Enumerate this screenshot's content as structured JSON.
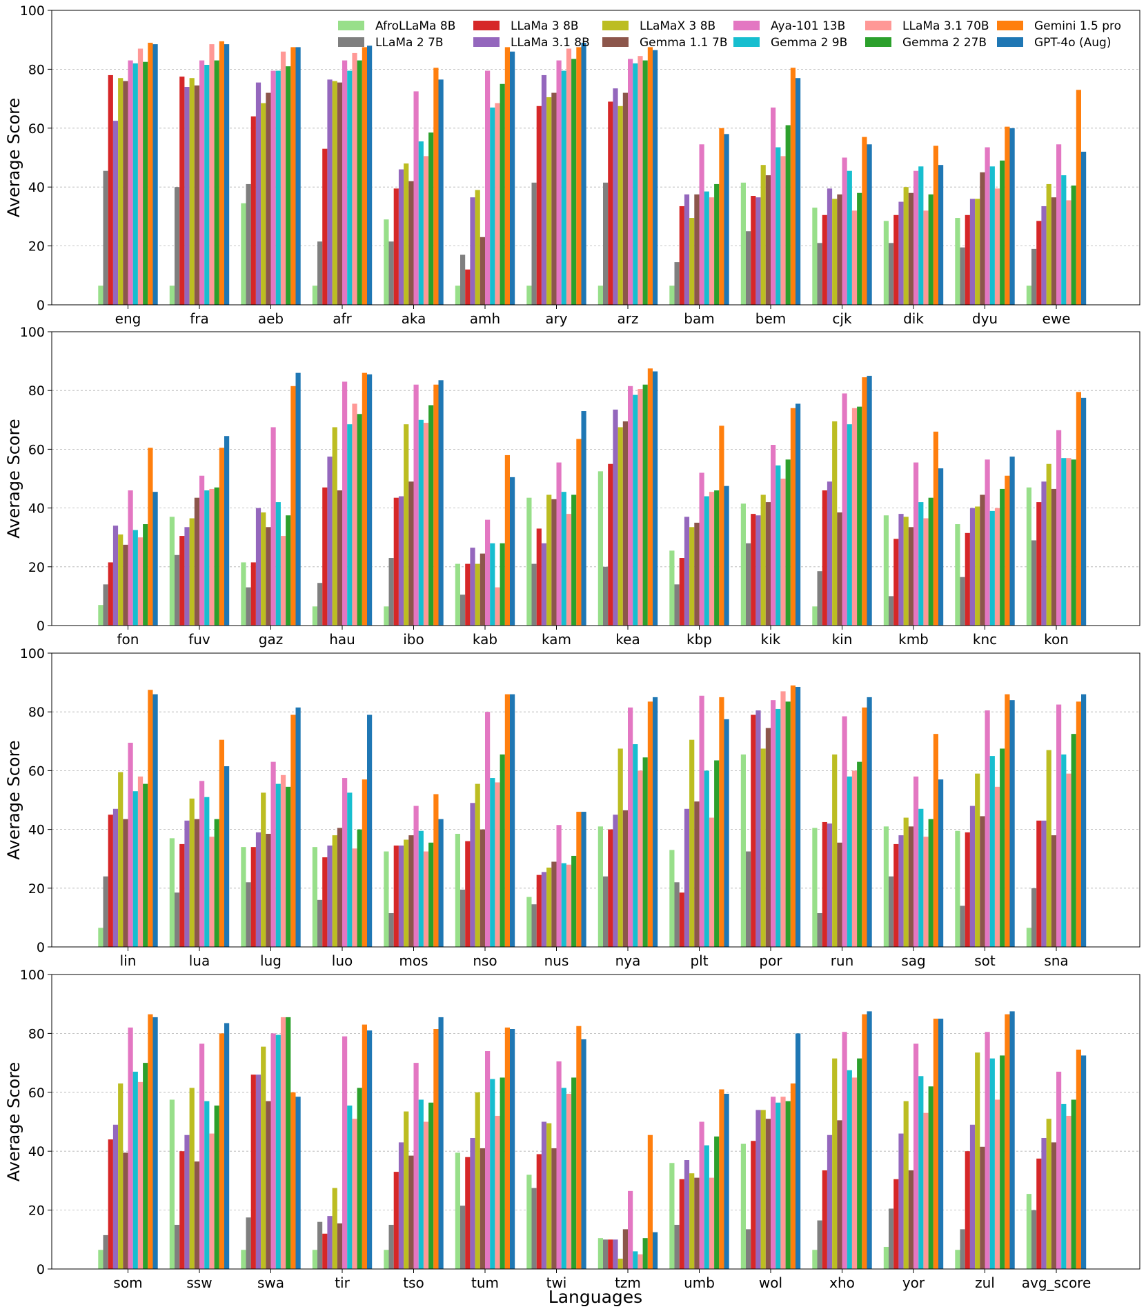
{
  "figure": {
    "xlabel": "Languages"
  },
  "legend": [
    {
      "name": "AfroLLaMa 8B",
      "color": "#98df8a"
    },
    {
      "name": "LLaMa 2 7B",
      "color": "#7f7f7f"
    },
    {
      "name": "LLaMa 3 8B",
      "color": "#d62728"
    },
    {
      "name": "LLaMa 3.1 8B",
      "color": "#9467bd"
    },
    {
      "name": "LLaMaX 3 8B",
      "color": "#bcbd22"
    },
    {
      "name": "Gemma 1.1 7B",
      "color": "#8c564b"
    },
    {
      "name": "Aya-101 13B",
      "color": "#e377c2"
    },
    {
      "name": "Gemma 2 9B",
      "color": "#17becf"
    },
    {
      "name": "LLaMa 3.1 70B",
      "color": "#ff9896"
    },
    {
      "name": "Gemma 2 27B",
      "color": "#2ca02c"
    },
    {
      "name": "Gemini 1.5 pro",
      "color": "#ff7f0e"
    },
    {
      "name": "GPT-4o (Aug)",
      "color": "#1f77b4"
    }
  ],
  "chart_data": [
    {
      "type": "bar",
      "ylabel": "Average Score",
      "ylim": [
        0,
        100
      ],
      "yticks": [
        0,
        20,
        40,
        60,
        80,
        100
      ],
      "grid": "horizontal dashed",
      "legend_position": "top-right",
      "categories": [
        "eng",
        "fra",
        "aeb",
        "afr",
        "aka",
        "amh",
        "ary",
        "arz",
        "bam",
        "bem",
        "cjk",
        "dik",
        "dyu",
        "ewe"
      ],
      "series": [
        {
          "name": "AfroLLaMa 8B",
          "values": [
            6.5,
            6.5,
            34.5,
            6.5,
            29,
            6.5,
            6.5,
            6.5,
            6.5,
            41.5,
            33,
            28.5,
            29.5,
            6.5
          ]
        },
        {
          "name": "LLaMa 2 7B",
          "values": [
            45.5,
            40,
            41,
            21.5,
            21.5,
            17,
            41.5,
            41.5,
            14.5,
            25,
            21,
            21,
            19.5,
            19
          ]
        },
        {
          "name": "LLaMa 3 8B",
          "values": [
            78,
            77.5,
            64,
            53,
            39.5,
            12,
            67.5,
            69,
            33.5,
            37,
            30.5,
            30.5,
            30.5,
            28.5
          ]
        },
        {
          "name": "LLaMa 3.1 8B",
          "values": [
            62.5,
            74,
            75.5,
            76.5,
            46,
            36.5,
            78,
            73.5,
            37.5,
            36.5,
            39.5,
            35,
            36,
            33.5
          ]
        },
        {
          "name": "LLaMaX 3 8B",
          "values": [
            77,
            77,
            68.5,
            76,
            48,
            39,
            70.5,
            67.5,
            29.5,
            47.5,
            36,
            40,
            36,
            41
          ]
        },
        {
          "name": "Gemma 1.1 7B",
          "values": [
            76,
            74.5,
            72,
            75.5,
            42,
            23,
            72,
            72,
            37.5,
            44,
            37.5,
            38,
            45,
            36.5
          ]
        },
        {
          "name": "Aya-101 13B",
          "values": [
            83,
            83,
            79.5,
            83,
            72.5,
            79.5,
            83,
            83.5,
            54.5,
            67,
            50,
            45.5,
            53.5,
            54.5
          ]
        },
        {
          "name": "Gemma 2 9B",
          "values": [
            82,
            81.5,
            79.5,
            79.5,
            55.5,
            67,
            79.5,
            82,
            38.5,
            53.5,
            45.5,
            47,
            47,
            44
          ]
        },
        {
          "name": "LLaMa 3.1 70B",
          "values": [
            87,
            88.5,
            86,
            85.5,
            50.5,
            68.5,
            87,
            84.5,
            36.5,
            50.5,
            32,
            32,
            39.5,
            35.5
          ]
        },
        {
          "name": "Gemma 2 27B",
          "values": [
            82.5,
            83,
            81,
            83,
            58.5,
            75,
            83.5,
            83,
            41,
            61,
            38,
            37.5,
            49,
            40.5
          ]
        },
        {
          "name": "Gemini 1.5 pro",
          "values": [
            89,
            89.5,
            87.5,
            87.5,
            80.5,
            87.5,
            87.5,
            87.5,
            60,
            80.5,
            57,
            54,
            60.5,
            73
          ]
        },
        {
          "name": "GPT-4o (Aug)",
          "values": [
            88.5,
            88.5,
            87.5,
            88,
            76.5,
            86,
            89,
            86.5,
            58,
            77,
            54.5,
            47.5,
            60,
            52
          ]
        }
      ]
    },
    {
      "type": "bar",
      "ylabel": "Average Score",
      "ylim": [
        0,
        100
      ],
      "yticks": [
        0,
        20,
        40,
        60,
        80,
        100
      ],
      "grid": "horizontal dashed",
      "categories": [
        "fon",
        "fuv",
        "gaz",
        "hau",
        "ibo",
        "kab",
        "kam",
        "kea",
        "kbp",
        "kik",
        "kin",
        "kmb",
        "knc",
        "kon"
      ],
      "series": [
        {
          "name": "AfroLLaMa 8B",
          "values": [
            7,
            37,
            21.5,
            6.5,
            6.5,
            21,
            43.5,
            52.5,
            25.5,
            41.5,
            6.5,
            37.5,
            34.5,
            47
          ]
        },
        {
          "name": "LLaMa 2 7B",
          "values": [
            14,
            24,
            13,
            14.5,
            23,
            10.5,
            21,
            20,
            14,
            28,
            18.5,
            10,
            16.5,
            29
          ]
        },
        {
          "name": "LLaMa 3 8B",
          "values": [
            21.5,
            30.5,
            21.5,
            47,
            43.5,
            21,
            33,
            55,
            23,
            38,
            46,
            29.5,
            31.5,
            42
          ]
        },
        {
          "name": "LLaMa 3.1 8B",
          "values": [
            34,
            33.5,
            40,
            57.5,
            44,
            26.5,
            28,
            73.5,
            37,
            37.5,
            49,
            38,
            40,
            49
          ]
        },
        {
          "name": "LLaMaX 3 8B",
          "values": [
            31,
            36.5,
            38.5,
            67.5,
            68.5,
            21,
            44.5,
            67.5,
            33.5,
            44.5,
            69.5,
            37,
            40.5,
            55
          ]
        },
        {
          "name": "Gemma 1.1 7B",
          "values": [
            27.5,
            43.5,
            33.5,
            46,
            49,
            24.5,
            43,
            69.5,
            35,
            42,
            38.5,
            33.5,
            44.5,
            46.5
          ]
        },
        {
          "name": "Aya-101 13B",
          "values": [
            46,
            51,
            67.5,
            83,
            82,
            36,
            55.5,
            81.5,
            52,
            61.5,
            79,
            55.5,
            56.5,
            66.5
          ]
        },
        {
          "name": "Gemma 2 9B",
          "values": [
            32.5,
            46,
            42,
            68.5,
            70,
            28,
            45.5,
            78.5,
            44,
            54.5,
            68.5,
            42,
            39,
            57
          ]
        },
        {
          "name": "LLaMa 3.1 70B",
          "values": [
            30,
            46.5,
            30.5,
            75.5,
            69,
            13,
            38,
            80.5,
            45.5,
            50,
            74,
            36.5,
            40,
            57
          ]
        },
        {
          "name": "Gemma 2 27B",
          "values": [
            34.5,
            47,
            37.5,
            72,
            75,
            28,
            44.5,
            82,
            46,
            56.5,
            74.5,
            43.5,
            46.5,
            56.5
          ]
        },
        {
          "name": "Gemini 1.5 pro",
          "values": [
            60.5,
            60.5,
            81.5,
            86,
            82,
            58,
            63.5,
            87.5,
            68,
            74,
            84.5,
            66,
            51,
            79.5
          ]
        },
        {
          "name": "GPT-4o (Aug)",
          "values": [
            45.5,
            64.5,
            86,
            85.5,
            83.5,
            50.5,
            73,
            86.5,
            47.5,
            75.5,
            85,
            53.5,
            57.5,
            77.5
          ]
        }
      ]
    },
    {
      "type": "bar",
      "ylabel": "Average Score",
      "ylim": [
        0,
        100
      ],
      "yticks": [
        0,
        20,
        40,
        60,
        80,
        100
      ],
      "grid": "horizontal dashed",
      "categories": [
        "lin",
        "lua",
        "lug",
        "luo",
        "mos",
        "nso",
        "nus",
        "nya",
        "plt",
        "por",
        "run",
        "sag",
        "sot",
        "sna"
      ],
      "series": [
        {
          "name": "AfroLLaMa 8B",
          "values": [
            6.5,
            37,
            34,
            34,
            32.5,
            38.5,
            17,
            41,
            33,
            65.5,
            40.5,
            41,
            39.5,
            6.5
          ]
        },
        {
          "name": "LLaMa 2 7B",
          "values": [
            24,
            18.5,
            22,
            16,
            11.5,
            19.5,
            14.5,
            24,
            22,
            32.5,
            11.5,
            24,
            14,
            20
          ]
        },
        {
          "name": "LLaMa 3 8B",
          "values": [
            45,
            35,
            34,
            30.5,
            34.5,
            36,
            24.5,
            40,
            18.5,
            79,
            42.5,
            35,
            39,
            43
          ]
        },
        {
          "name": "LLaMa 3.1 8B",
          "values": [
            47,
            43,
            39,
            34.5,
            34.5,
            49,
            25.5,
            45,
            47,
            80.5,
            42,
            38,
            48,
            43
          ]
        },
        {
          "name": "LLaMaX 3 8B",
          "values": [
            59.5,
            50.5,
            52.5,
            38,
            36.5,
            55.5,
            27,
            67.5,
            70.5,
            67.5,
            65.5,
            44,
            59,
            67
          ]
        },
        {
          "name": "Gemma 1.1 7B",
          "values": [
            43.5,
            43.5,
            38.5,
            40.5,
            38,
            40,
            29,
            46.5,
            49.5,
            74.5,
            35.5,
            41,
            44.5,
            38
          ]
        },
        {
          "name": "Aya-101 13B",
          "values": [
            69.5,
            56.5,
            63,
            57.5,
            48,
            80,
            41.5,
            81.5,
            85.5,
            84,
            78.5,
            58,
            80.5,
            82.5
          ]
        },
        {
          "name": "Gemma 2 9B",
          "values": [
            53,
            51,
            55.5,
            52.5,
            39.5,
            57.5,
            28.5,
            69,
            60,
            81,
            58,
            47,
            65,
            65.5
          ]
        },
        {
          "name": "LLaMa 3.1 70B",
          "values": [
            58,
            37.5,
            58.5,
            33.5,
            32.5,
            56,
            28,
            60,
            44,
            87,
            60,
            37.5,
            54.5,
            59
          ]
        },
        {
          "name": "Gemma 2 27B",
          "values": [
            55.5,
            43.5,
            54.5,
            40,
            35.5,
            65.5,
            31,
            64.5,
            63.5,
            83.5,
            63,
            43.5,
            67.5,
            72.5
          ]
        },
        {
          "name": "Gemini 1.5 pro",
          "values": [
            87.5,
            70.5,
            79,
            57,
            52,
            86,
            46,
            83.5,
            85,
            89,
            81.5,
            72.5,
            86,
            83.5
          ]
        },
        {
          "name": "GPT-4o (Aug)",
          "values": [
            86,
            61.5,
            81.5,
            79,
            43.5,
            86,
            46,
            85,
            77.5,
            88.5,
            85,
            57,
            84,
            86
          ]
        }
      ]
    },
    {
      "type": "bar",
      "ylabel": "Average Score",
      "ylim": [
        0,
        100
      ],
      "yticks": [
        0,
        20,
        40,
        60,
        80,
        100
      ],
      "grid": "horizontal dashed",
      "categories": [
        "som",
        "ssw",
        "swa",
        "tir",
        "tso",
        "tum",
        "twi",
        "tzm",
        "umb",
        "wol",
        "xho",
        "yor",
        "zul",
        "avg_score"
      ],
      "series": [
        {
          "name": "AfroLLaMa 8B",
          "values": [
            6.5,
            57.5,
            6.5,
            6.5,
            6.5,
            39.5,
            32,
            10.5,
            36,
            42.5,
            6.5,
            7.5,
            6.5,
            25.5
          ]
        },
        {
          "name": "LLaMa 2 7B",
          "values": [
            11.5,
            15,
            17.5,
            16,
            15,
            21.5,
            27.5,
            10,
            15,
            13.5,
            16.5,
            20.5,
            13.5,
            20
          ]
        },
        {
          "name": "LLaMa 3 8B",
          "values": [
            44,
            40,
            66,
            12,
            33,
            38,
            39,
            10,
            30.5,
            43.5,
            33.5,
            30.5,
            40,
            37.5
          ]
        },
        {
          "name": "LLaMa 3.1 8B",
          "values": [
            49,
            45.5,
            66,
            18,
            43,
            44.5,
            50,
            10,
            37,
            54,
            45.5,
            46,
            49,
            44.5
          ]
        },
        {
          "name": "LLaMaX 3 8B",
          "values": [
            63,
            61.5,
            75.5,
            27.5,
            53.5,
            60,
            49.5,
            3.5,
            32.5,
            54,
            71.5,
            57,
            73.5,
            51
          ]
        },
        {
          "name": "Gemma 1.1 7B",
          "values": [
            39.5,
            36.5,
            57,
            15.5,
            38.5,
            41,
            41,
            13.5,
            31,
            51,
            50.5,
            33.5,
            41.5,
            43
          ]
        },
        {
          "name": "Aya-101 13B",
          "values": [
            82,
            76.5,
            80,
            79,
            70,
            74,
            70.5,
            26.5,
            50,
            58.5,
            80.5,
            76.5,
            80.5,
            67
          ]
        },
        {
          "name": "Gemma 2 9B",
          "values": [
            67,
            57,
            79.5,
            55.5,
            57.5,
            64.5,
            61.5,
            6,
            42,
            56.5,
            67.5,
            65.5,
            71.5,
            56
          ]
        },
        {
          "name": "LLaMa 3.1 70B",
          "values": [
            63.5,
            46,
            85.5,
            51,
            50,
            52,
            59.5,
            5,
            31,
            58.5,
            65,
            53,
            57.5,
            52
          ]
        },
        {
          "name": "Gemma 2 27B",
          "values": [
            70,
            55.5,
            85.5,
            61.5,
            56.5,
            65,
            65,
            10.5,
            45,
            57,
            71.5,
            62,
            72.5,
            57.5
          ]
        },
        {
          "name": "Gemini 1.5 pro",
          "values": [
            86.5,
            80,
            60,
            83,
            81.5,
            82,
            82.5,
            45.5,
            61,
            63,
            86.5,
            85,
            86.5,
            74.5
          ]
        },
        {
          "name": "GPT-4o (Aug)",
          "values": [
            85.5,
            83.5,
            58.5,
            81,
            85.5,
            81.5,
            78,
            12.5,
            59.5,
            80,
            87.5,
            85,
            87.5,
            72.5
          ]
        }
      ]
    }
  ]
}
